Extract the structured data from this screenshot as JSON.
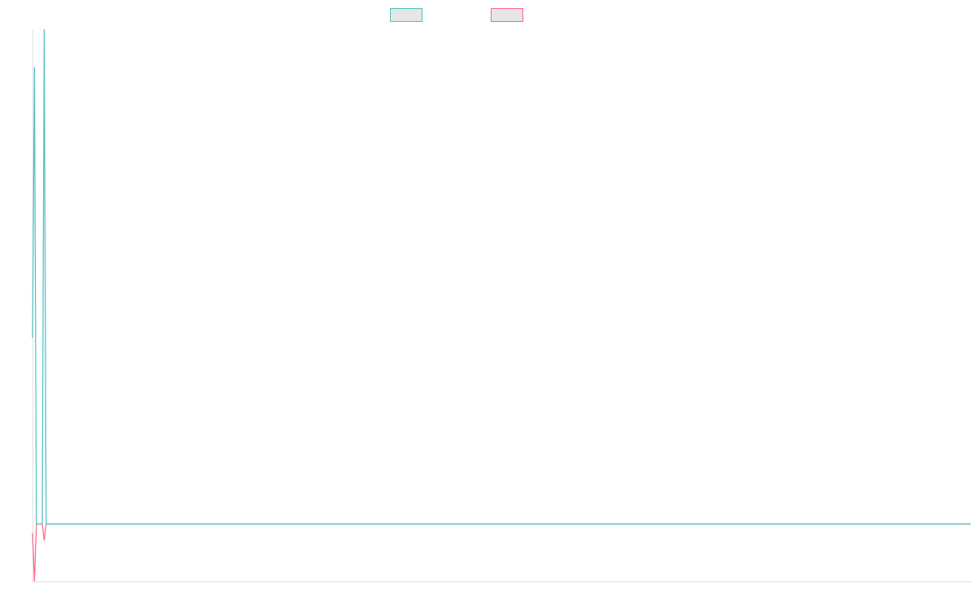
{
  "chart_data": {
    "type": "line",
    "title": "",
    "xlabel": "",
    "ylabel": "",
    "x_count": 482,
    "ylim": [
      0,
      100
    ],
    "grid": false,
    "legend": "top-center",
    "series": [
      {
        "color": "#4bc0c0",
        "default_value": 10.4,
        "points": [
          [
            0,
            44.1
          ],
          [
            1,
            93.1
          ],
          [
            2,
            10.4
          ],
          [
            6,
            100
          ],
          [
            7,
            10.4
          ]
        ]
      },
      {
        "color": "#ff6384",
        "default_value": 10.4,
        "points": [
          [
            0,
            8.7
          ],
          [
            1,
            0
          ],
          [
            2,
            10.4
          ],
          [
            6,
            7.4
          ],
          [
            7,
            10.4
          ]
        ]
      }
    ]
  }
}
